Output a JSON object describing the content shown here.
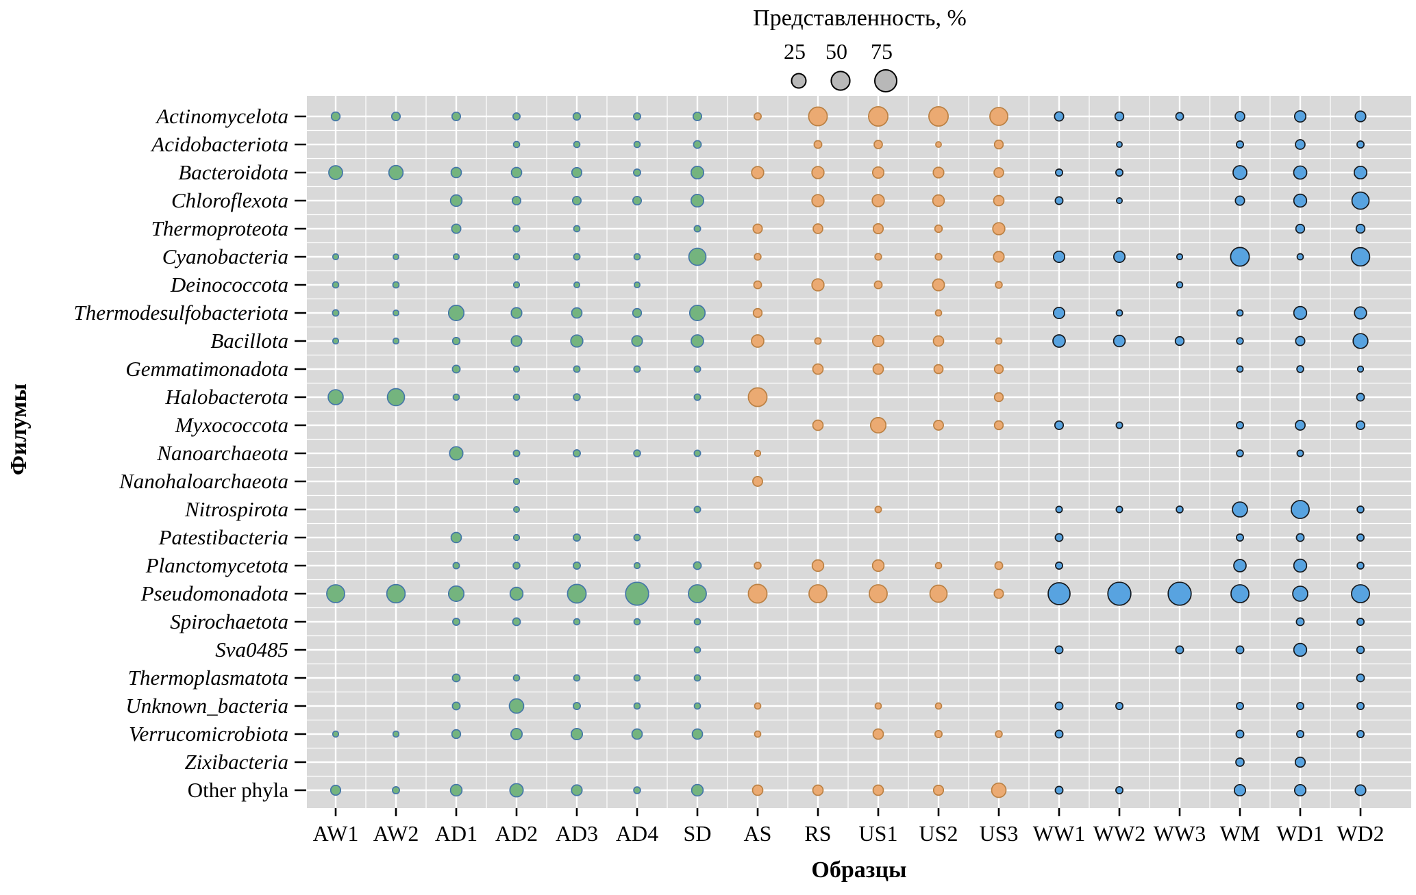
{
  "legend": {
    "title": "Представленность, %",
    "sizes": [
      25,
      50,
      75
    ]
  },
  "axes": {
    "y_title": "Филумы",
    "x_title": "Образцы"
  },
  "chart_data": {
    "type": "bubble-matrix",
    "x_categories": [
      "AW1",
      "AW2",
      "AD1",
      "AD2",
      "AD3",
      "AD4",
      "SD",
      "AS",
      "RS",
      "US1",
      "US2",
      "US3",
      "WW1",
      "WW2",
      "WW3",
      "WM",
      "WD1",
      "WD2"
    ],
    "x_groups": [
      "green",
      "green",
      "green",
      "green",
      "green",
      "green",
      "green",
      "orange",
      "orange",
      "orange",
      "orange",
      "orange",
      "blue",
      "blue",
      "blue",
      "blue",
      "blue",
      "blue"
    ],
    "y_categories": [
      {
        "label": "Actinomycelota",
        "italic": true
      },
      {
        "label": "Acidobacteriota",
        "italic": true
      },
      {
        "label": "Bacteroidota",
        "italic": true
      },
      {
        "label": "Chloroflexota",
        "italic": true
      },
      {
        "label": "Thermoproteota",
        "italic": true
      },
      {
        "label": "Cyanobacteria",
        "italic": true
      },
      {
        "label": "Deinococcota",
        "italic": true
      },
      {
        "label": "Thermodesulfobacteriota",
        "italic": true
      },
      {
        "label": "Bacillota",
        "italic": true
      },
      {
        "label": "Gemmatimonadota",
        "italic": true
      },
      {
        "label": "Halobacterota",
        "italic": true
      },
      {
        "label": "Myxococcota",
        "italic": true
      },
      {
        "label": "Nanoarchaeota",
        "italic": true
      },
      {
        "label": "Nanohaloarchaeota",
        "italic": true
      },
      {
        "label": "Nitrospirota",
        "italic": true
      },
      {
        "label": "Patestibacteria",
        "italic": true
      },
      {
        "label": "Planctomycetota",
        "italic": true
      },
      {
        "label": "Pseudomonadota",
        "italic": true
      },
      {
        "label": "Spirochaetota",
        "italic": true
      },
      {
        "label": "Sva0485",
        "italic": true
      },
      {
        "label": "Thermoplasmatota",
        "italic": true
      },
      {
        "label": "Unknown_bacteria",
        "italic": true
      },
      {
        "label": "Verrucomicrobiota",
        "italic": true
      },
      {
        "label": "Zixibacteria",
        "italic": true
      },
      {
        "label": "Other phyla",
        "italic": false
      }
    ],
    "values_percent": [
      [
        5,
        4.5,
        4.5,
        2,
        2.5,
        2,
        4.5,
        2,
        50,
        55,
        55,
        45,
        6,
        5,
        3,
        7,
        12,
        10
      ],
      [
        0,
        0,
        0,
        1,
        1,
        1,
        3,
        0,
        3,
        4,
        0.5,
        5,
        0,
        0.5,
        0,
        2,
        7,
        2
      ],
      [
        22,
        24,
        9,
        9,
        8,
        2,
        17,
        15,
        15,
        12,
        10,
        7,
        2,
        2,
        0,
        22,
        19,
        17
      ],
      [
        0,
        0,
        13,
        4.5,
        4.5,
        4.5,
        17,
        0,
        15,
        15,
        13,
        9,
        3,
        0.6,
        0,
        6,
        18,
        40
      ],
      [
        0,
        0,
        6,
        1.5,
        1,
        0,
        1.2,
        6,
        7,
        8,
        2.5,
        15,
        0,
        0,
        0,
        0,
        5,
        5
      ],
      [
        0.7,
        0.5,
        0.7,
        1,
        1.2,
        1,
        40,
        1.5,
        0,
        1.5,
        1.5,
        10,
        12,
        12,
        0.7,
        50,
        1,
        48
      ],
      [
        1,
        1,
        0,
        0.8,
        0.6,
        0.6,
        0,
        3,
        15,
        3,
        14,
        1.6,
        0,
        0,
        0.9,
        0,
        0,
        0
      ],
      [
        1.2,
        0.6,
        30,
        10,
        9,
        5,
        30,
        5,
        0,
        0,
        1,
        0,
        12,
        1,
        0,
        1,
        18,
        15
      ],
      [
        0.7,
        0.7,
        2.4,
        10,
        15,
        10,
        16,
        16,
        1.2,
        12,
        9,
        1,
        16,
        13,
        5,
        1.5,
        6,
        27
      ],
      [
        0,
        0,
        3,
        0.8,
        1.2,
        1.2,
        1.2,
        0,
        9,
        9,
        5.5,
        5,
        0,
        0,
        0,
        1,
        1.6,
        0.8
      ],
      [
        28,
        40,
        1,
        1,
        1.6,
        0,
        1.2,
        50,
        0,
        0,
        0,
        5,
        0,
        0,
        0,
        0,
        0,
        3
      ],
      [
        0,
        0,
        0,
        0,
        0,
        0,
        0,
        0,
        9,
        30,
        7.5,
        5,
        4.5,
        1.2,
        0,
        2,
        7.5,
        4.5
      ],
      [
        0,
        0,
        20,
        1.2,
        2,
        1.6,
        1.2,
        0.8,
        0,
        0,
        0,
        0,
        0,
        0,
        0,
        1.6,
        1.2,
        0
      ],
      [
        0,
        0,
        0,
        0.8,
        0,
        0,
        0,
        7.5,
        0,
        0,
        0,
        0,
        0,
        0,
        0,
        0,
        0,
        0
      ],
      [
        0,
        0,
        0,
        0.6,
        0,
        0,
        1.2,
        0,
        0,
        1.2,
        0,
        0,
        1.2,
        1.2,
        1.6,
        28,
        45,
        1.6
      ],
      [
        0,
        0,
        9,
        0.8,
        2,
        1.2,
        0,
        0,
        0,
        0,
        0,
        0,
        3,
        0,
        0,
        2,
        3,
        2
      ],
      [
        0,
        0,
        1.2,
        1.6,
        2,
        0.8,
        3,
        1.6,
        13,
        13,
        1,
        3,
        2,
        0,
        0,
        16,
        18,
        1.6
      ],
      [
        45,
        48,
        30,
        18,
        50,
        85,
        45,
        50,
        45,
        45,
        40,
        6,
        75,
        85,
        85,
        45,
        28,
        45
      ],
      [
        0,
        0,
        2,
        3,
        1,
        1,
        1,
        0,
        0,
        0,
        0,
        0,
        0,
        0,
        0,
        0,
        3,
        2
      ],
      [
        0,
        0,
        0,
        0,
        0,
        0,
        1,
        0,
        0,
        0,
        0,
        0,
        3,
        0,
        3,
        3,
        18,
        2.5
      ],
      [
        0,
        0,
        3,
        1,
        1,
        1,
        1,
        0,
        0,
        0,
        0,
        0,
        0,
        0,
        0,
        0,
        0,
        3
      ],
      [
        0,
        0,
        3,
        25,
        2,
        1,
        1,
        1,
        0,
        1,
        1,
        0,
        3,
        2,
        0,
        2,
        2,
        2
      ],
      [
        0.8,
        0.8,
        5,
        12,
        12,
        9,
        9,
        1,
        0,
        9,
        2,
        1.6,
        3,
        0,
        0,
        3,
        2,
        2
      ],
      [
        0,
        0,
        0,
        0,
        0,
        0,
        0,
        0,
        0,
        0,
        0,
        0,
        0,
        0,
        0,
        4,
        8,
        0
      ],
      [
        8,
        2,
        13,
        20,
        10,
        1.6,
        13,
        9,
        9,
        9,
        8,
        25,
        3,
        2,
        0,
        12,
        12,
        10
      ]
    ],
    "palette": {
      "green": {
        "fill": "#74b47e",
        "stroke": "#4577a8"
      },
      "orange": {
        "fill": "#ebaa72",
        "stroke": "#bb8144"
      },
      "blue": {
        "fill": "#58a3e0",
        "stroke": "#16191d"
      },
      "legend_gray": {
        "fill": "#b8b8b8",
        "stroke": "#000000"
      }
    },
    "panel_background": "#d9d9d9",
    "gridline_color": "#ffffff"
  }
}
